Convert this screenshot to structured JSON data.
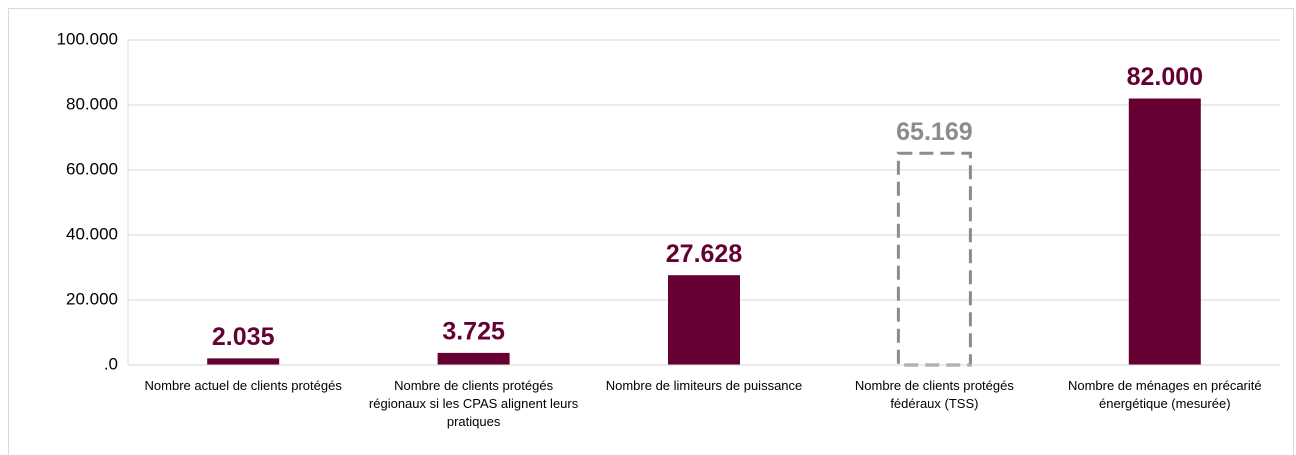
{
  "chart_data": {
    "type": "bar",
    "categories": [
      "Nombre actuel de clients protégés",
      "Nombre de clients protégés régionaux si les CPAS alignent leurs pratiques",
      "Nombre de limiteurs de puissance",
      "Nombre de clients protégés fédéraux (TSS)",
      "Nombre de ménages en précarité énergétique (mesurée)"
    ],
    "values": [
      2035,
      3725,
      27628,
      65169,
      82000
    ],
    "value_labels": [
      "2.035",
      "3.725",
      "27.628",
      "65.169",
      "82.000"
    ],
    "colors": [
      "#660033",
      "#660033",
      "#660033",
      "#8c8c8c",
      "#660033"
    ],
    "bar_styles": [
      "solid",
      "solid",
      "solid",
      "dashed",
      "solid"
    ],
    "ylim": [
      0,
      100000
    ],
    "yticks": [
      {
        "value": 0,
        "label": ".0"
      },
      {
        "value": 20000,
        "label": "20.000"
      },
      {
        "value": 40000,
        "label": "40.000"
      },
      {
        "value": 60000,
        "label": "60.000"
      },
      {
        "value": 80000,
        "label": "80.000"
      },
      {
        "value": 100000,
        "label": "100.000"
      }
    ],
    "grid": true
  }
}
